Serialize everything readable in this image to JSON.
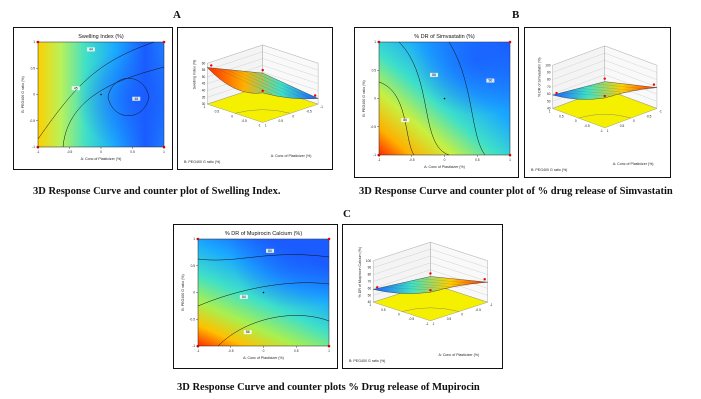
{
  "figure": {
    "panels": [
      {
        "letter": "A",
        "contour_title": "Swelling Index (%)",
        "contour_xlabel": "A: Conc of Plasticizer (%)",
        "contour_ylabel": "B: PEG400 G ratio (%)",
        "contour_labels": [
          "44",
          "45",
          "48"
        ],
        "surface_zlabel": "Swelling Index (%)",
        "surface_xlabel": "A: Conc of Plasticizer (%)",
        "surface_ylabel": "B: PEG400 G ratio (%)",
        "surface_zticks": [
          "60",
          "55",
          "50",
          "45",
          "40",
          "35",
          "30"
        ],
        "caption": "3D Response Curve and counter plot of Swelling Index."
      },
      {
        "letter": "B",
        "contour_title": "% DR of Simvastatin (%)",
        "contour_xlabel": "A: Conc of Plasticizer (%)",
        "contour_ylabel": "B: PEG400 G ratio (%)",
        "contour_labels": [
          "86",
          "88",
          "90"
        ],
        "surface_zlabel": "% DR of Simvastatin (%)",
        "surface_xlabel": "A: Conc of Plasticizer (%)",
        "surface_ylabel": "B: PEG400 G ratio (%)",
        "surface_zticks": [
          "100",
          "90",
          "80",
          "70",
          "60",
          "50",
          "40"
        ],
        "caption": "3D Response Curve and counter plot of % drug release of Simvastatin"
      },
      {
        "letter": "C",
        "contour_title": "% DR of Mupirocin Calcium (%)",
        "contour_xlabel": "A: Conc of Plasticizer (%)",
        "contour_ylabel": "B: PEG400 G ratio (%)",
        "contour_labels": [
          "80",
          "84",
          "86"
        ],
        "surface_zlabel": "% DR of Mupirocin Calcium (%)",
        "surface_xlabel": "A: Conc of Plasticizer (%)",
        "surface_ylabel": "B: PEG400 G ratio (%)",
        "surface_zticks": [
          "100",
          "90",
          "80",
          "70",
          "60",
          "50",
          "40"
        ],
        "caption": "3D Response Curve and counter plots % Drug release of Mupirocin"
      }
    ],
    "contour_xticks": [
      "-1",
      "-0.5",
      "0",
      "0.5",
      "1"
    ],
    "contour_yticks": [
      "1",
      "0.5",
      "0",
      "-0.5",
      "-1"
    ],
    "surface_base_ticks": [
      "1",
      "0.5",
      "0",
      "-0.5",
      "-1"
    ],
    "colors": {
      "contour_low": "#1a5cff",
      "contour_mid": "#3fe0c8",
      "contour_high": "#ff2a00",
      "surface_base": "#f5f000",
      "border": "#111111"
    }
  }
}
